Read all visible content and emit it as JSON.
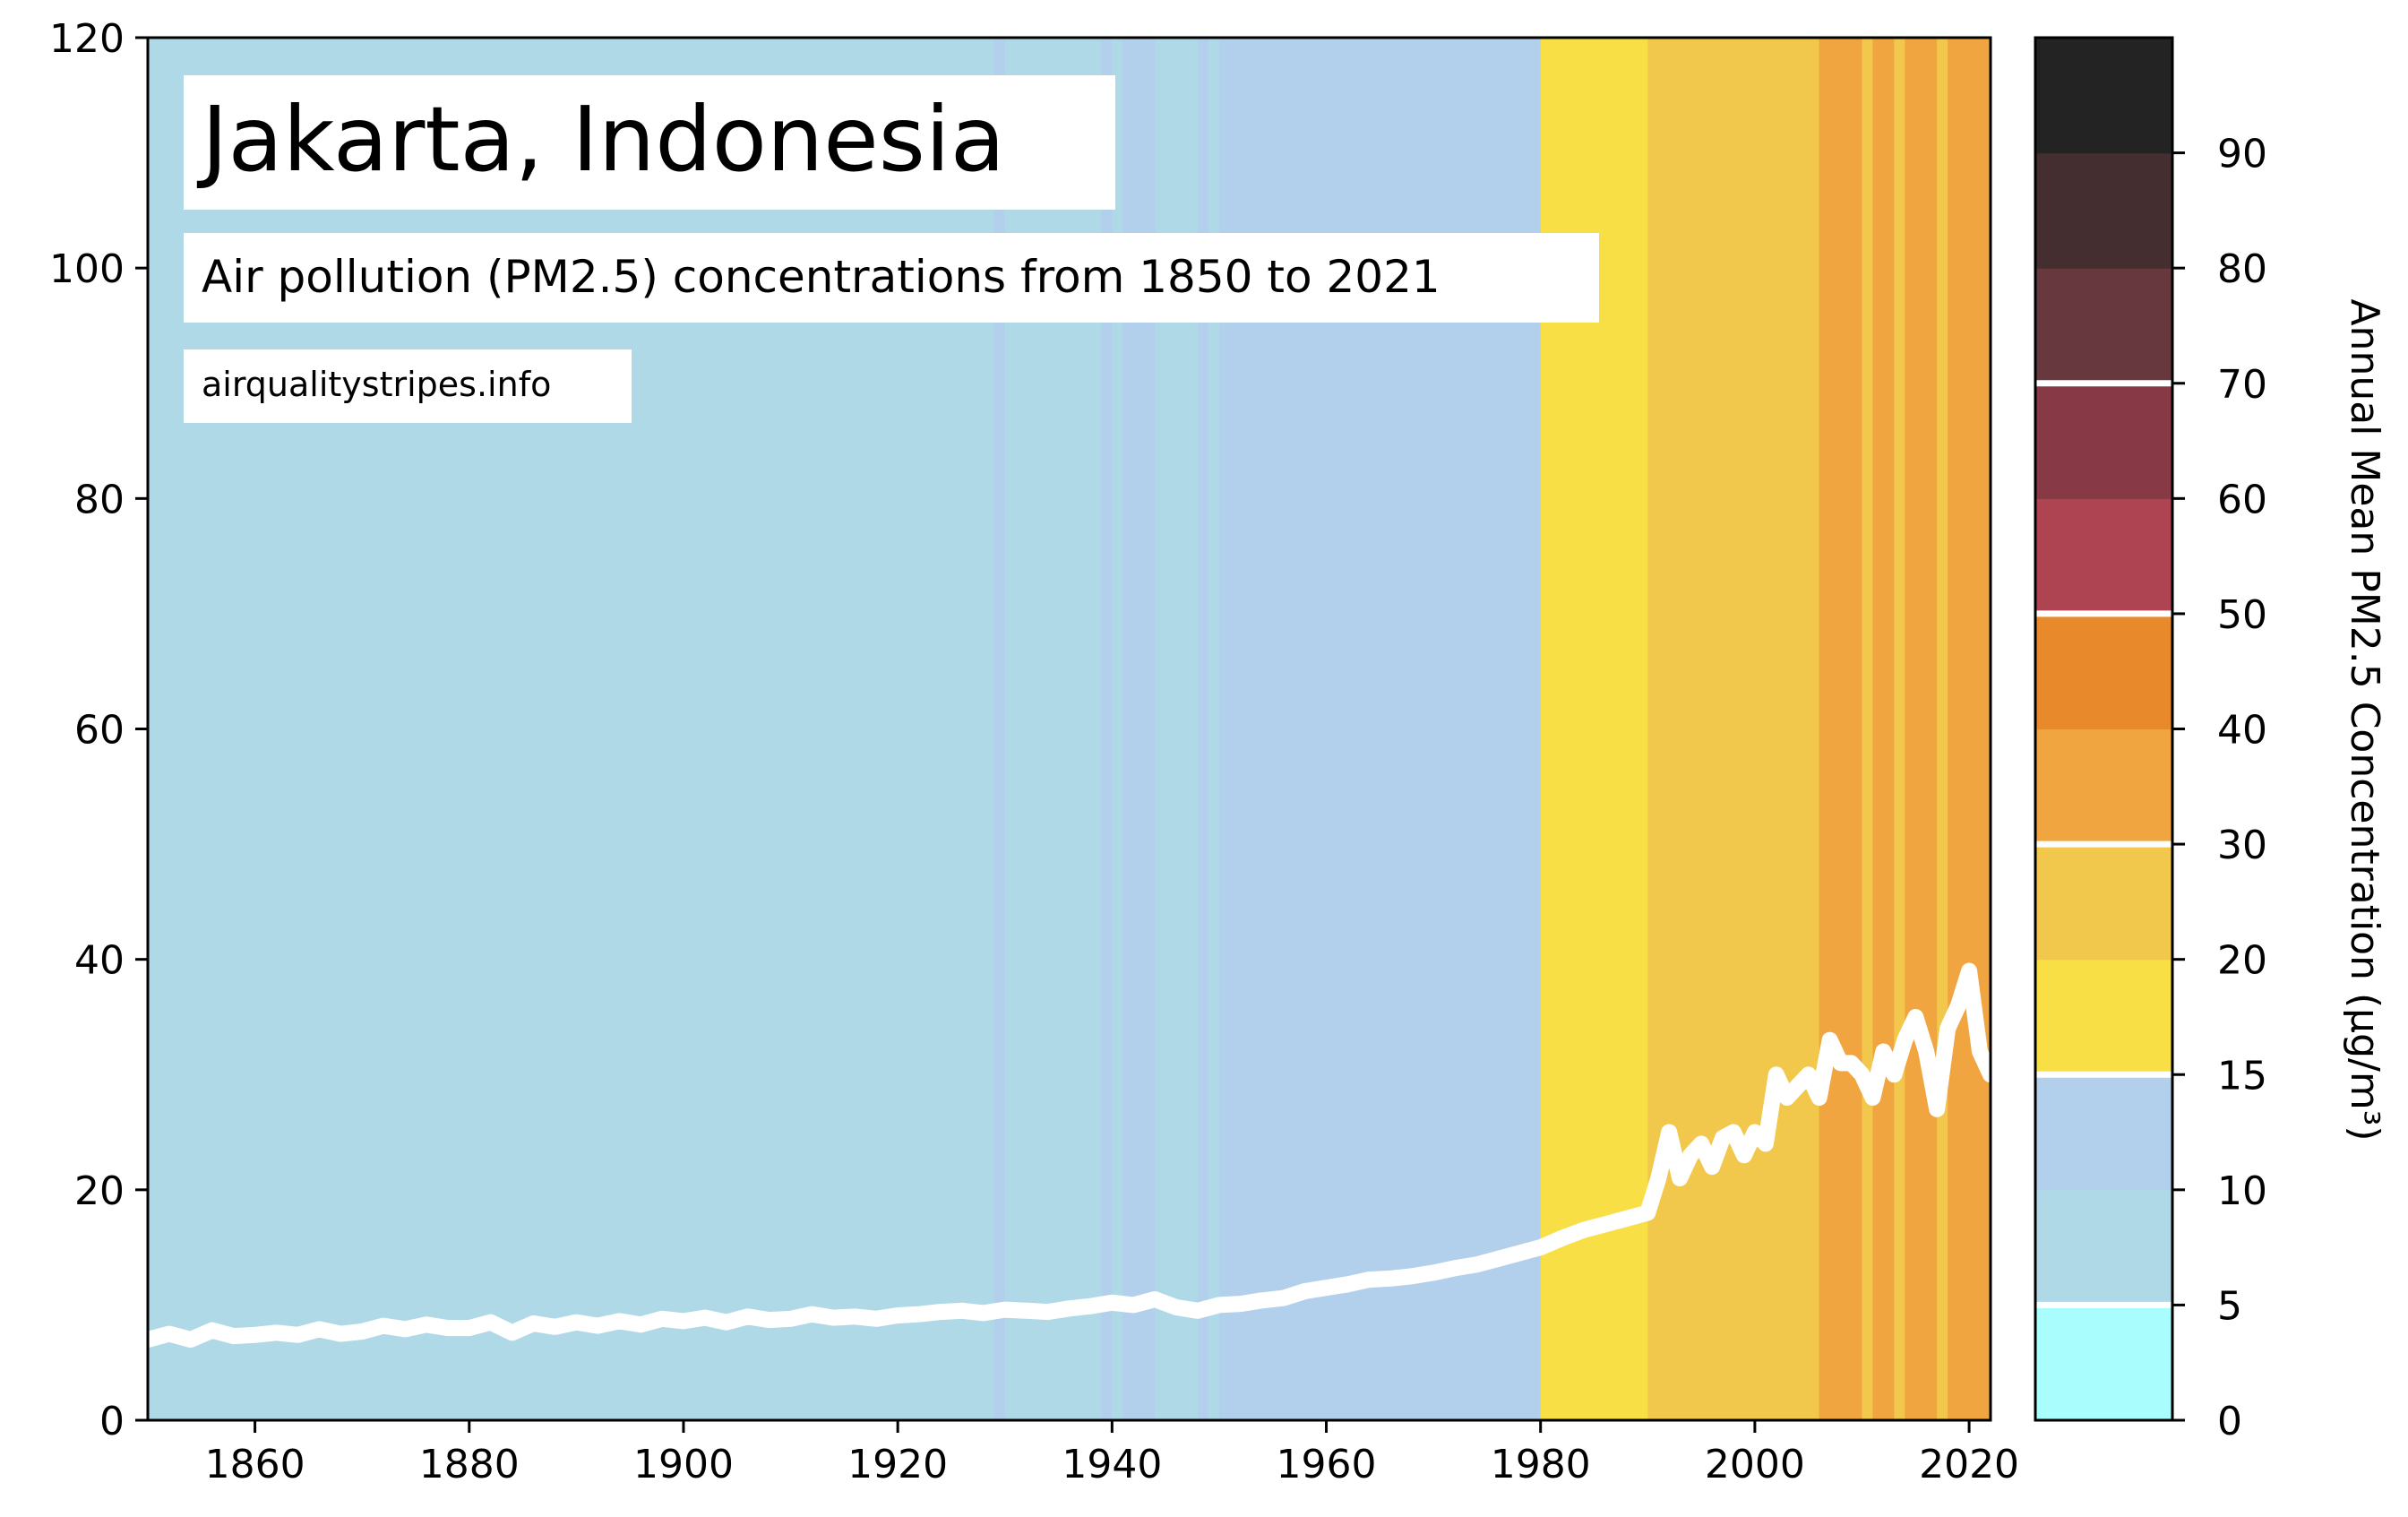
{
  "chart_data": {
    "type": "line",
    "title": "Jakarta, Indonesia",
    "subtitle": "Air pollution (PM2.5) concentrations from 1850 to 2021",
    "source": "airqualitystripes.info",
    "xlabel": "",
    "ylabel": "",
    "xlim": [
      1850,
      2022
    ],
    "ylim": [
      0,
      120
    ],
    "xticks": [
      1860,
      1880,
      1900,
      1920,
      1940,
      1960,
      1980,
      2000,
      2020
    ],
    "yticks": [
      0,
      20,
      40,
      60,
      80,
      100,
      120
    ],
    "line_color": "#ffffff",
    "stripes": [
      {
        "from": 1850,
        "to": 1929,
        "color": "#b0d9e8"
      },
      {
        "from": 1929,
        "to": 1930,
        "color": "#b2cfec"
      },
      {
        "from": 1930,
        "to": 1939,
        "color": "#b0d9e8"
      },
      {
        "from": 1939,
        "to": 1940,
        "color": "#b2cfec"
      },
      {
        "from": 1940,
        "to": 1941,
        "color": "#b0d9e8"
      },
      {
        "from": 1941,
        "to": 1944,
        "color": "#b2cfec"
      },
      {
        "from": 1944,
        "to": 1948,
        "color": "#b0d9e8"
      },
      {
        "from": 1948,
        "to": 1949,
        "color": "#b2cfec"
      },
      {
        "from": 1949,
        "to": 1950,
        "color": "#b0d9e8"
      },
      {
        "from": 1950,
        "to": 1980,
        "color": "#b2cfec"
      },
      {
        "from": 1980,
        "to": 1990,
        "color": "#f8df45"
      },
      {
        "from": 1990,
        "to": 2006,
        "color": "#f1c84c"
      },
      {
        "from": 2006,
        "to": 2010,
        "color": "#f0a540"
      },
      {
        "from": 2010,
        "to": 2011,
        "color": "#f1c84c"
      },
      {
        "from": 2011,
        "to": 2013,
        "color": "#f0a540"
      },
      {
        "from": 2013,
        "to": 2014,
        "color": "#f1c84c"
      },
      {
        "from": 2014,
        "to": 2017,
        "color": "#f0a540"
      },
      {
        "from": 2017,
        "to": 2018,
        "color": "#f1c84c"
      },
      {
        "from": 2018,
        "to": 2022,
        "color": "#f0a540"
      }
    ],
    "series": [
      {
        "x": [
          1850,
          1852,
          1854,
          1856,
          1858,
          1860,
          1862,
          1864,
          1866,
          1868,
          1870,
          1872,
          1874,
          1876,
          1878,
          1880,
          1882,
          1884,
          1886,
          1888,
          1890,
          1892,
          1894,
          1896,
          1898,
          1900,
          1902,
          1904,
          1906,
          1908,
          1910,
          1912,
          1914,
          1916,
          1918,
          1920,
          1922,
          1924,
          1926,
          1928,
          1930,
          1932,
          1934,
          1936,
          1938,
          1940,
          1942,
          1944,
          1946,
          1948,
          1950,
          1952,
          1954,
          1956,
          1958,
          1960,
          1962,
          1964,
          1966,
          1968,
          1970,
          1972,
          1974,
          1976,
          1978,
          1980,
          1982,
          1984,
          1986,
          1988,
          1990,
          1991,
          1992,
          1993,
          1994,
          1995,
          1996,
          1997,
          1998,
          1999,
          2000,
          2001,
          2002,
          2003,
          2004,
          2005,
          2006,
          2007,
          2008,
          2009,
          2010,
          2011,
          2012,
          2013,
          2014,
          2015,
          2016,
          2017,
          2018,
          2019,
          2020,
          2021,
          2022
        ],
        "values": [
          7,
          7.5,
          7,
          7.8,
          7.3,
          7.4,
          7.6,
          7.4,
          7.9,
          7.5,
          7.7,
          8.2,
          7.9,
          8.3,
          8,
          8,
          8.5,
          7.6,
          8.4,
          8.1,
          8.5,
          8.2,
          8.6,
          8.3,
          8.8,
          8.6,
          8.9,
          8.5,
          9,
          8.7,
          8.8,
          9.2,
          8.9,
          9,
          8.8,
          9.1,
          9.2,
          9.4,
          9.5,
          9.3,
          9.6,
          9.5,
          9.4,
          9.7,
          9.9,
          10.2,
          10,
          10.5,
          9.8,
          9.5,
          10,
          10.1,
          10.4,
          10.6,
          11.2,
          11.5,
          11.8,
          12.2,
          12.3,
          12.5,
          12.8,
          13.2,
          13.5,
          14,
          14.5,
          15,
          15.8,
          16.5,
          17,
          17.5,
          18,
          21,
          25,
          21,
          23,
          24,
          22,
          24.5,
          25,
          23,
          25,
          24,
          30,
          28,
          29,
          30,
          28,
          33,
          31,
          31,
          30,
          28,
          32,
          30,
          33,
          35,
          32,
          27,
          34,
          36,
          39,
          32,
          30
        ]
      }
    ],
    "colorbar": {
      "label": "Annual Mean PM2.5 Concentration (µg/m³)",
      "tick_labels": [
        "0",
        "5",
        "10",
        "15",
        "20",
        "30",
        "40",
        "50",
        "60",
        "70",
        "80",
        "90"
      ],
      "bands": [
        {
          "from": 0,
          "to": 5,
          "color": "#a9fdfd"
        },
        {
          "from": 5,
          "to": 10,
          "color": "#b0d9e8"
        },
        {
          "from": 10,
          "to": 15,
          "color": "#b2cfec"
        },
        {
          "from": 15,
          "to": 20,
          "color": "#f8df45"
        },
        {
          "from": 20,
          "to": 30,
          "color": "#f1c84c"
        },
        {
          "from": 30,
          "to": 40,
          "color": "#f0a540"
        },
        {
          "from": 40,
          "to": 50,
          "color": "#e8892b"
        },
        {
          "from": 50,
          "to": 60,
          "color": "#ae4452"
        },
        {
          "from": 60,
          "to": 70,
          "color": "#873946"
        },
        {
          "from": 70,
          "to": 80,
          "color": "#67383d"
        },
        {
          "from": 80,
          "to": 90,
          "color": "#452e2f"
        },
        {
          "from": 90,
          "to": 100,
          "color": "#232323"
        }
      ],
      "separator_values": [
        5,
        15,
        30,
        50,
        70
      ],
      "separator_color": "#ffffff"
    }
  }
}
